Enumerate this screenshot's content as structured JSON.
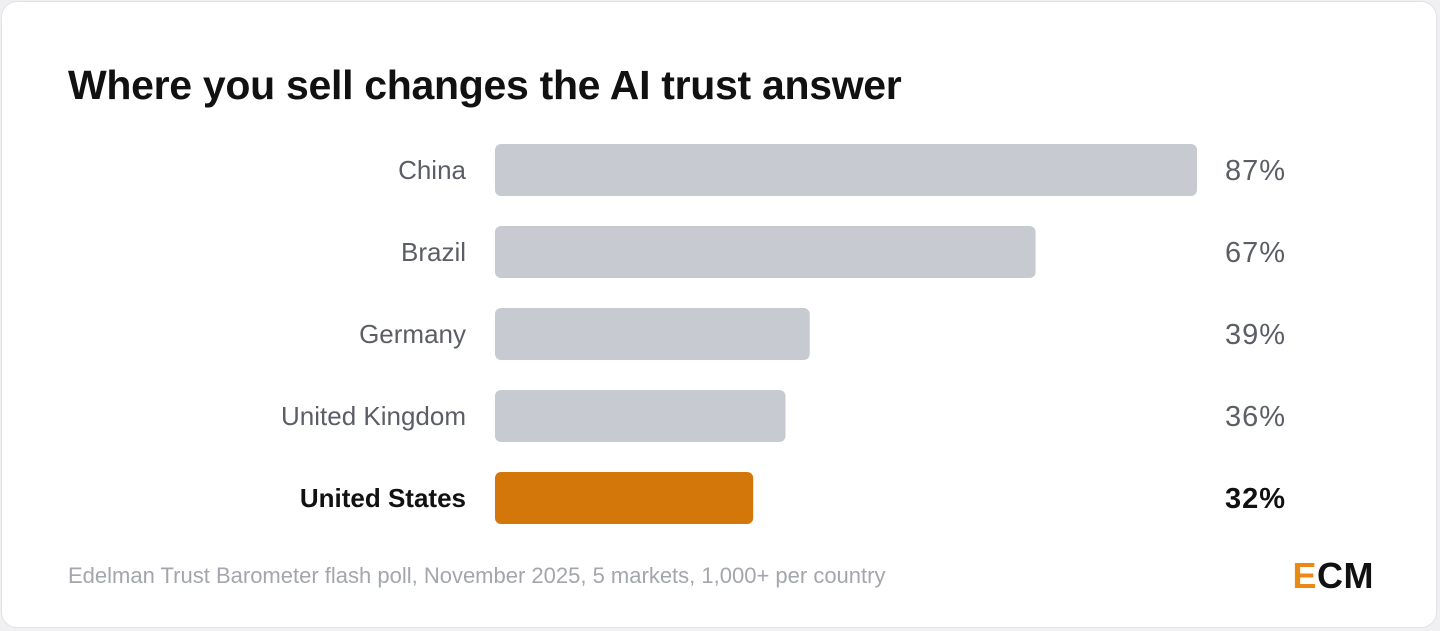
{
  "chart_data": {
    "type": "bar",
    "orientation": "horizontal",
    "title": "Where you sell changes the AI trust answer",
    "categories": [
      "China",
      "Brazil",
      "Germany",
      "United Kingdom",
      "United States"
    ],
    "values": [
      87,
      67,
      39,
      36,
      32
    ],
    "value_labels": [
      "87%",
      "67%",
      "39%",
      "36%",
      "32%"
    ],
    "unit": "%",
    "highlight": "United States",
    "colors": {
      "bar": "#c8cad2",
      "highlight_bar": "#d4770b",
      "label": "#5b5e66",
      "highlight_label": "#111111"
    }
  },
  "source_note": "Edelman Trust Barometer flash poll, November 2025, 5 markets, 1,000+ per country",
  "logo": {
    "part1": "E",
    "part2": "CM",
    "accent_color": "#ea8a12"
  }
}
